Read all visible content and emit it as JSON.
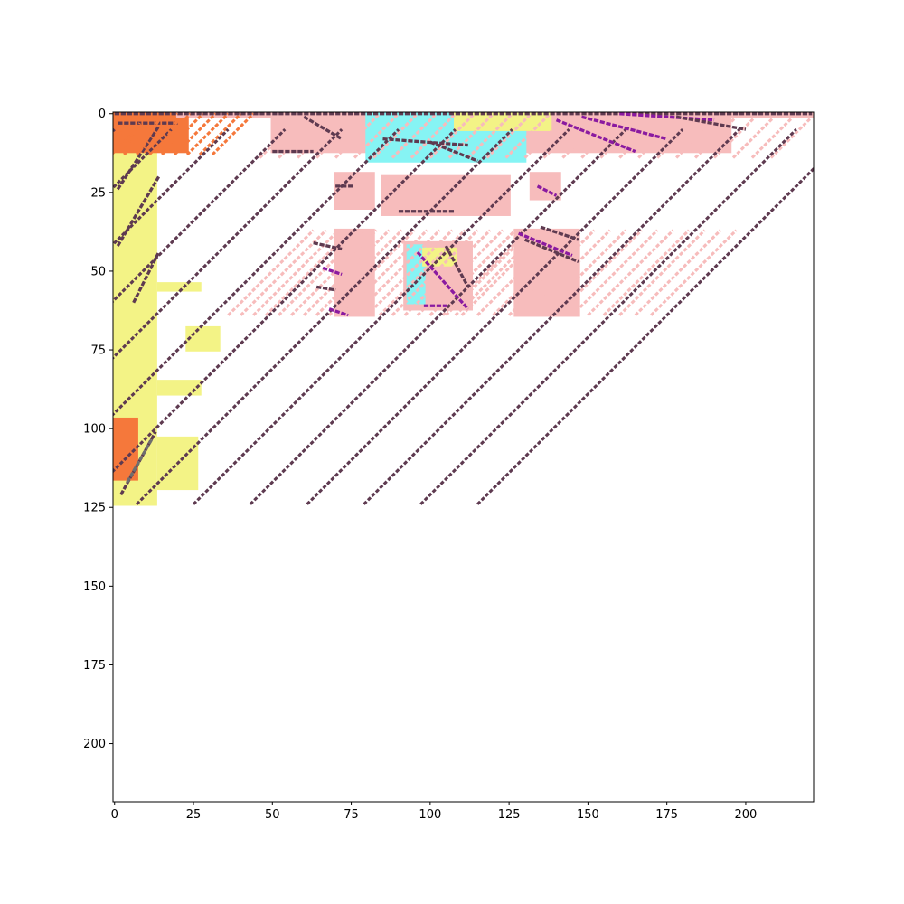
{
  "chart_data": {
    "type": "heatmap",
    "title": "",
    "xlabel": "",
    "ylabel": "",
    "xlim": [
      -0.5,
      221.5
    ],
    "ylim": [
      218.5,
      -0.5
    ],
    "y_axis_inverted": true,
    "grid": false,
    "legend": "none",
    "x_ticks": [
      0,
      25,
      50,
      75,
      100,
      125,
      150,
      175,
      200
    ],
    "x_tick_labels": [
      "0",
      "25",
      "50",
      "75",
      "100",
      "125",
      "150",
      "175",
      "200"
    ],
    "y_ticks": [
      0,
      25,
      50,
      75,
      100,
      125,
      150,
      175,
      200
    ],
    "y_tick_labels": [
      "0",
      "25",
      "50",
      "75",
      "100",
      "125",
      "150",
      "175",
      "200"
    ],
    "colors": {
      "yellow": "#f3f386",
      "orange": "#f5783b",
      "pink": "#f7bcbc",
      "cyan": "#86f4f4",
      "purple": "#8a1aa0",
      "plum": "#5e3a50",
      "gray": "#6e6e6e",
      "background": "#ffffff"
    },
    "regions": [
      {
        "color": "yellow",
        "x": [
          0,
          13
        ],
        "y": [
          0,
          124
        ]
      },
      {
        "color": "orange",
        "x": [
          0,
          23
        ],
        "y": [
          0,
          12
        ]
      },
      {
        "color": "yellow",
        "x": [
          14,
          27
        ],
        "y": [
          54,
          56
        ]
      },
      {
        "color": "yellow",
        "x": [
          14,
          27
        ],
        "y": [
          85,
          89
        ]
      },
      {
        "color": "yellow",
        "x": [
          23,
          33
        ],
        "y": [
          68,
          75
        ]
      },
      {
        "color": "yellow",
        "x": [
          14,
          26
        ],
        "y": [
          103,
          119
        ]
      },
      {
        "color": "orange",
        "x": [
          0,
          7
        ],
        "y": [
          97,
          116
        ]
      },
      {
        "color": "pink",
        "x": [
          20,
          221
        ],
        "y": [
          0,
          1
        ]
      },
      {
        "color": "pink",
        "x": [
          50,
          195
        ],
        "y": [
          1,
          12
        ]
      },
      {
        "color": "cyan",
        "x": [
          80,
          130
        ],
        "y": [
          0,
          15
        ]
      },
      {
        "color": "yellow",
        "x": [
          108,
          138
        ],
        "y": [
          0,
          5
        ]
      },
      {
        "color": "pink",
        "x": [
          85,
          125
        ],
        "y": [
          20,
          32
        ]
      },
      {
        "color": "pink",
        "x": [
          70,
          82
        ],
        "y": [
          37,
          64
        ]
      },
      {
        "color": "pink",
        "x": [
          92,
          113
        ],
        "y": [
          41,
          62
        ]
      },
      {
        "color": "cyan",
        "x": [
          93,
          98
        ],
        "y": [
          42,
          60
        ]
      },
      {
        "color": "yellow",
        "x": [
          98,
          108
        ],
        "y": [
          43,
          48
        ]
      },
      {
        "color": "pink",
        "x": [
          127,
          147
        ],
        "y": [
          37,
          64
        ]
      },
      {
        "color": "pink",
        "x": [
          132,
          141
        ],
        "y": [
          19,
          27
        ]
      },
      {
        "color": "pink",
        "x": [
          70,
          82
        ],
        "y": [
          19,
          30
        ]
      }
    ],
    "diagonal_strokes": [
      {
        "color": "plum",
        "x0": 0,
        "y0": 0,
        "x1": 221,
        "y1": 0
      },
      {
        "color": "plum",
        "x0": 1,
        "y0": 3,
        "x1": 20,
        "y1": 3
      },
      {
        "color": "plum",
        "x0": 1,
        "y0": 24,
        "x1": 14,
        "y1": 4
      },
      {
        "color": "plum",
        "x0": 1,
        "y0": 42,
        "x1": 14,
        "y1": 20
      },
      {
        "color": "plum",
        "x0": 6,
        "y0": 60,
        "x1": 14,
        "y1": 44
      },
      {
        "color": "plum",
        "x0": 2,
        "y0": 121,
        "x1": 13,
        "y1": 101
      },
      {
        "color": "gray",
        "x0": 4,
        "y0": 117,
        "x1": 12,
        "y1": 103
      },
      {
        "color": "orange",
        "x0": 3,
        "y0": 12,
        "x1": 8,
        "y1": 3
      },
      {
        "color": "orange",
        "x0": 8,
        "y0": 12,
        "x1": 14,
        "y1": 2
      },
      {
        "color": "orange",
        "x0": 14,
        "y0": 12,
        "x1": 20,
        "y1": 2
      },
      {
        "color": "plum",
        "x0": 50,
        "y0": 12,
        "x1": 63,
        "y1": 12
      },
      {
        "color": "plum",
        "x0": 60,
        "y0": 1,
        "x1": 72,
        "y1": 8
      },
      {
        "color": "plum",
        "x0": 85,
        "y0": 8,
        "x1": 112,
        "y1": 10
      },
      {
        "color": "plum",
        "x0": 100,
        "y0": 9,
        "x1": 115,
        "y1": 15
      },
      {
        "color": "purple",
        "x0": 140,
        "y0": 2,
        "x1": 165,
        "y1": 12
      },
      {
        "color": "purple",
        "x0": 148,
        "y0": 1,
        "x1": 175,
        "y1": 8
      },
      {
        "color": "purple",
        "x0": 160,
        "y0": 0,
        "x1": 190,
        "y1": 2
      },
      {
        "color": "plum",
        "x0": 178,
        "y0": 1,
        "x1": 200,
        "y1": 5
      },
      {
        "color": "plum",
        "x0": 70,
        "y0": 23,
        "x1": 76,
        "y1": 23
      },
      {
        "color": "plum",
        "x0": 90,
        "y0": 31,
        "x1": 108,
        "y1": 31
      },
      {
        "color": "plum",
        "x0": 63,
        "y0": 41,
        "x1": 72,
        "y1": 43
      },
      {
        "color": "purple",
        "x0": 66,
        "y0": 49,
        "x1": 72,
        "y1": 51
      },
      {
        "color": "plum",
        "x0": 64,
        "y0": 55,
        "x1": 70,
        "y1": 56
      },
      {
        "color": "purple",
        "x0": 68,
        "y0": 62,
        "x1": 74,
        "y1": 64
      },
      {
        "color": "plum",
        "x0": 130,
        "y0": 40,
        "x1": 147,
        "y1": 47
      },
      {
        "color": "purple",
        "x0": 128,
        "y0": 38,
        "x1": 145,
        "y1": 45
      },
      {
        "color": "plum",
        "x0": 135,
        "y0": 36,
        "x1": 147,
        "y1": 40
      },
      {
        "color": "plum",
        "x0": 105,
        "y0": 42,
        "x1": 112,
        "y1": 55
      },
      {
        "color": "purple",
        "x0": 96,
        "y0": 44,
        "x1": 112,
        "y1": 62
      },
      {
        "color": "purple",
        "x0": 98,
        "y0": 61,
        "x1": 106,
        "y1": 61
      },
      {
        "color": "purple",
        "x0": 134,
        "y0": 23,
        "x1": 140,
        "y1": 26
      }
    ],
    "stripe_regions": [
      {
        "color": "pink",
        "x": [
          60,
          200
        ],
        "y": [
          0,
          14
        ],
        "spacing": 6
      },
      {
        "color": "pink",
        "x": [
          127,
          147
        ],
        "y": [
          37,
          64
        ],
        "spacing": 5
      },
      {
        "color": "pink",
        "x": [
          63,
          82
        ],
        "y": [
          37,
          64
        ],
        "spacing": 4
      },
      {
        "color": "orange",
        "x": [
          0,
          22
        ],
        "y": [
          0,
          13
        ],
        "spacing": 4
      },
      {
        "color": "plum",
        "x": [
          0,
          14
        ],
        "y": [
          5,
          124
        ],
        "spacing": 18
      }
    ]
  }
}
